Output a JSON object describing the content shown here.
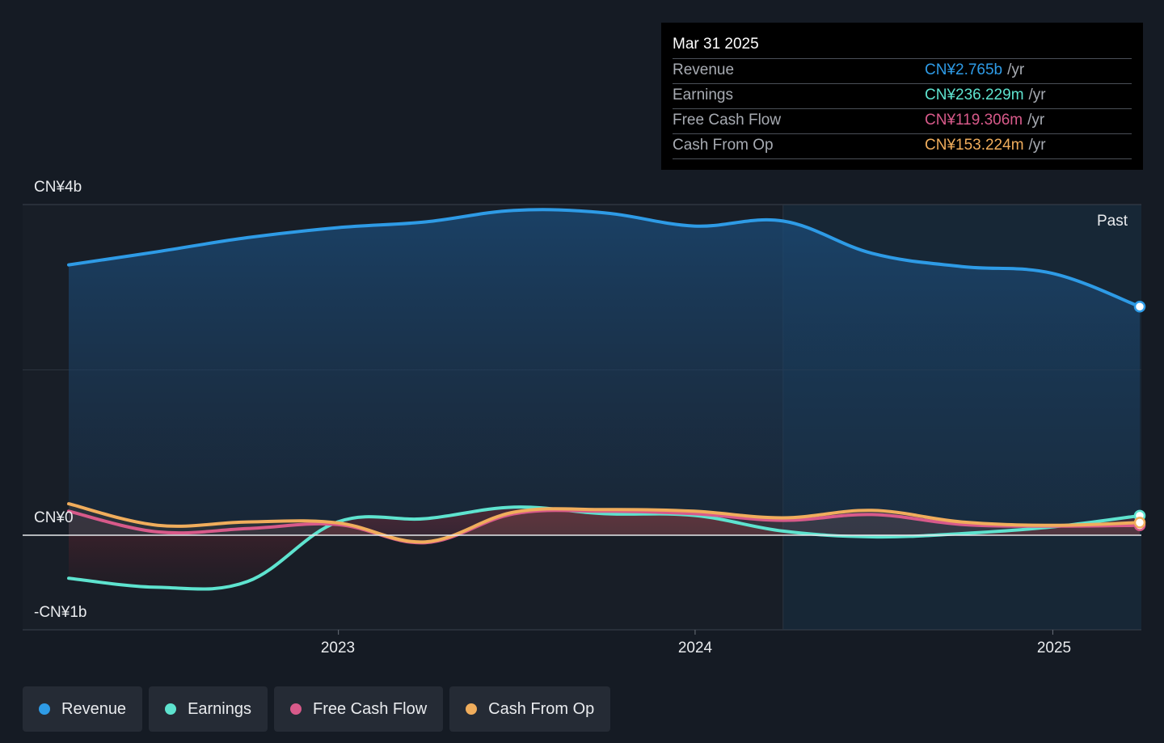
{
  "tooltip": {
    "date": "Mar 31 2025",
    "rows": [
      {
        "label": "Revenue",
        "value": "CN¥2.765b",
        "unit": "/yr",
        "color": "#2e9be6"
      },
      {
        "label": "Earnings",
        "value": "CN¥236.229m",
        "unit": "/yr",
        "color": "#5ee3cf"
      },
      {
        "label": "Free Cash Flow",
        "value": "CN¥119.306m",
        "unit": "/yr",
        "color": "#d85a8a"
      },
      {
        "label": "Cash From Op",
        "value": "CN¥153.224m",
        "unit": "/yr",
        "color": "#f0ad5c"
      }
    ]
  },
  "past_label": "Past",
  "legend": [
    {
      "label": "Revenue",
      "color": "#2e9be6"
    },
    {
      "label": "Earnings",
      "color": "#5ee3cf"
    },
    {
      "label": "Free Cash Flow",
      "color": "#d85a8a"
    },
    {
      "label": "Cash From Op",
      "color": "#f0ad5c"
    }
  ],
  "chart_data": {
    "type": "area",
    "y_tick_labels": [
      "CN¥4b",
      "CN¥0",
      "-CN¥1b"
    ],
    "x_tick_labels": [
      "2023",
      "2024",
      "2025"
    ],
    "ylim": [
      -1000,
      4000
    ],
    "x_range": [
      "2022-03-31",
      "2025-03-31"
    ],
    "forecast_boundary": "2024-03-31",
    "series": [
      {
        "name": "Revenue",
        "color": "#2e9be6",
        "x": [
          "2022-03-31",
          "2022-06-30",
          "2022-09-30",
          "2022-12-31",
          "2023-03-31",
          "2023-06-30",
          "2023-09-30",
          "2023-12-31",
          "2024-03-31",
          "2024-06-30",
          "2024-09-30",
          "2024-12-31",
          "2025-03-31"
        ],
        "y": [
          3270,
          3430,
          3600,
          3720,
          3790,
          3930,
          3900,
          3740,
          3800,
          3410,
          3250,
          3170,
          2765
        ]
      },
      {
        "name": "Earnings",
        "color": "#5ee3cf",
        "x": [
          "2022-03-31",
          "2022-06-30",
          "2022-09-30",
          "2022-12-31",
          "2023-03-31",
          "2023-06-30",
          "2023-09-30",
          "2023-12-31",
          "2024-03-31",
          "2024-06-30",
          "2024-09-30",
          "2024-12-31",
          "2025-03-31"
        ],
        "y": [
          -520,
          -630,
          -560,
          160,
          200,
          340,
          260,
          240,
          50,
          -20,
          20,
          100,
          236.229
        ]
      },
      {
        "name": "Free Cash Flow",
        "color": "#d85a8a",
        "x": [
          "2022-03-31",
          "2022-06-30",
          "2022-09-30",
          "2022-12-31",
          "2023-03-31",
          "2023-06-30",
          "2023-09-30",
          "2023-12-31",
          "2024-03-31",
          "2024-06-30",
          "2024-09-30",
          "2024-12-31",
          "2025-03-31"
        ],
        "y": [
          290,
          40,
          80,
          130,
          -90,
          260,
          290,
          260,
          180,
          250,
          130,
          110,
          119.306
        ]
      },
      {
        "name": "Cash From Op",
        "color": "#f0ad5c",
        "x": [
          "2022-03-31",
          "2022-06-30",
          "2022-09-30",
          "2022-12-31",
          "2023-03-31",
          "2023-06-30",
          "2023-09-30",
          "2023-12-31",
          "2024-03-31",
          "2024-06-30",
          "2024-09-30",
          "2024-12-31",
          "2025-03-31"
        ],
        "y": [
          380,
          120,
          160,
          150,
          -80,
          280,
          310,
          290,
          210,
          300,
          160,
          120,
          153.224
        ]
      }
    ]
  }
}
